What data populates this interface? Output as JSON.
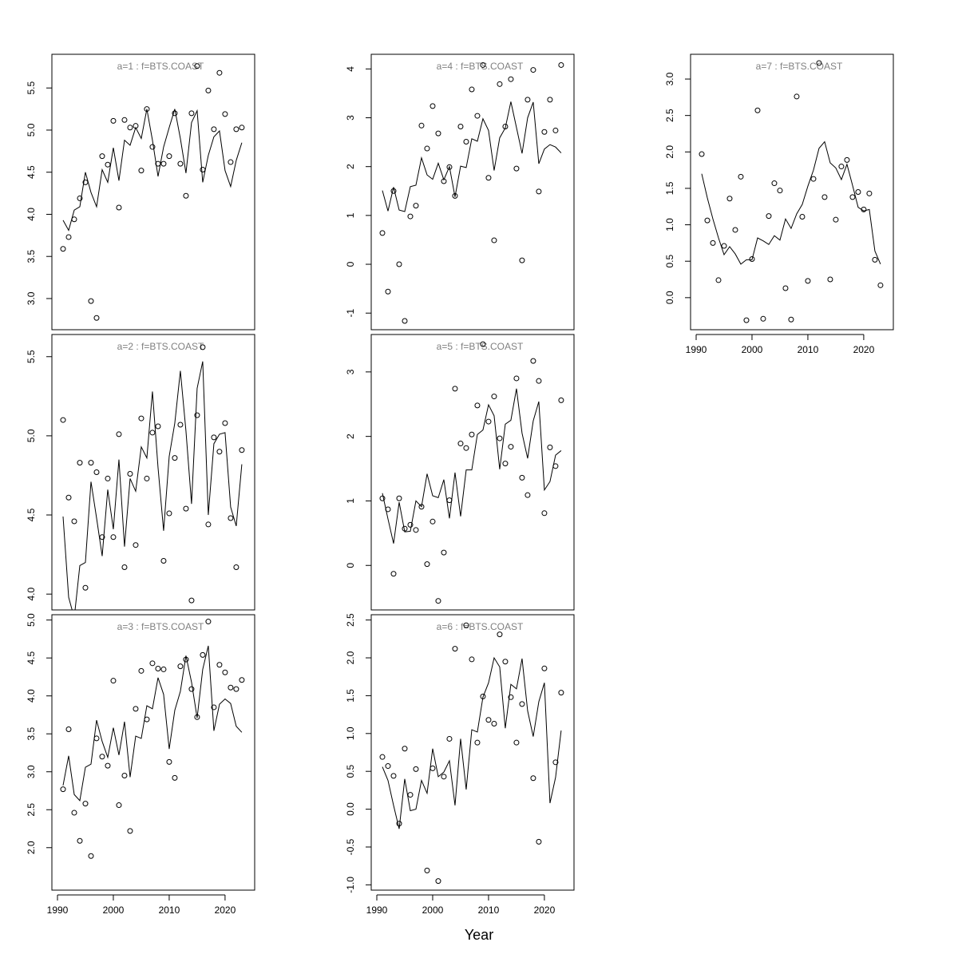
{
  "xlabel": "Year",
  "chart_data": [
    {
      "type": "line",
      "title": "a=1  :  f=BTS.COAST",
      "x": [
        1991,
        1992,
        1993,
        1994,
        1995,
        1996,
        1997,
        1998,
        1999,
        2000,
        2001,
        2002,
        2003,
        2004,
        2005,
        2006,
        2007,
        2008,
        2009,
        2010,
        2011,
        2012,
        2013,
        2014,
        2015,
        2016,
        2017,
        2018,
        2019,
        2020,
        2021,
        2022,
        2023
      ],
      "series": [
        {
          "style": "points",
          "color": "#000000",
          "values": [
            3.59,
            3.73,
            3.94,
            4.19,
            4.38,
            2.97,
            2.77,
            4.69,
            4.59,
            5.11,
            4.08,
            5.12,
            5.03,
            5.05,
            4.52,
            5.25,
            4.8,
            4.6,
            4.6,
            4.69,
            5.2,
            4.6,
            4.22,
            5.2,
            5.76,
            4.53,
            5.47,
            5.01,
            5.68,
            5.19,
            4.62,
            5.01,
            5.03
          ]
        },
        {
          "style": "line",
          "color": "#000000",
          "values": [
            3.93,
            3.81,
            4.05,
            4.09,
            4.5,
            4.26,
            4.09,
            4.53,
            4.38,
            4.79,
            4.4,
            4.88,
            4.82,
            5.03,
            4.9,
            5.25,
            4.88,
            4.45,
            4.8,
            5.03,
            5.25,
            4.9,
            4.49,
            5.09,
            5.23,
            4.38,
            4.7,
            4.92,
            4.99,
            4.52,
            4.33,
            4.64,
            4.85
          ]
        }
      ],
      "xlim": [
        1989,
        2025.3
      ],
      "ylim": [
        2.63,
        5.9
      ],
      "yticks": [
        {
          "value": 3,
          "label": "3.0"
        },
        3.5,
        {
          "value": 4,
          "label": "4.0"
        },
        4.5,
        {
          "value": 5,
          "label": "5.0"
        },
        5.5
      ]
    },
    {
      "type": "line",
      "title": "a=2  :  f=BTS.COAST",
      "x": [
        1991,
        1992,
        1993,
        1994,
        1995,
        1996,
        1997,
        1998,
        1999,
        2000,
        2001,
        2002,
        2003,
        2004,
        2005,
        2006,
        2007,
        2008,
        2009,
        2010,
        2011,
        2012,
        2013,
        2014,
        2015,
        2016,
        2017,
        2018,
        2019,
        2020,
        2021,
        2022,
        2023
      ],
      "series": [
        {
          "style": "points",
          "color": "#000000",
          "values": [
            5.1,
            4.61,
            4.46,
            4.83,
            4.04,
            4.83,
            4.77,
            4.36,
            4.73,
            4.36,
            5.01,
            4.17,
            4.76,
            4.31,
            5.11,
            4.73,
            5.02,
            5.06,
            4.21,
            4.51,
            4.86,
            5.07,
            4.54,
            3.96,
            5.13,
            5.56,
            4.44,
            4.99,
            4.9,
            5.08,
            4.48,
            4.17,
            4.91
          ]
        },
        {
          "style": "line",
          "color": "#000000",
          "values": [
            4.49,
            3.98,
            3.85,
            4.18,
            4.2,
            4.71,
            4.48,
            4.24,
            4.66,
            4.41,
            4.85,
            4.3,
            4.73,
            4.65,
            4.93,
            4.86,
            5.28,
            4.8,
            4.4,
            4.87,
            5.08,
            5.41,
            5.03,
            4.57,
            5.3,
            5.47,
            4.5,
            4.95,
            5.01,
            5.02,
            4.55,
            4.43,
            4.82
          ]
        }
      ],
      "xlim": [
        1989,
        2025.3
      ],
      "ylim": [
        3.9,
        5.64
      ],
      "yticks": [
        {
          "value": 4,
          "label": "4.0"
        },
        4.5,
        {
          "value": 5,
          "label": "5.0"
        },
        5.5
      ]
    },
    {
      "type": "line",
      "title": "a=3  :  f=BTS.COAST",
      "x": [
        1991,
        1992,
        1993,
        1994,
        1995,
        1996,
        1997,
        1998,
        1999,
        2000,
        2001,
        2002,
        2003,
        2004,
        2005,
        2006,
        2007,
        2008,
        2009,
        2010,
        2011,
        2012,
        2013,
        2014,
        2015,
        2016,
        2017,
        2018,
        2019,
        2020,
        2021,
        2022,
        2023
      ],
      "series": [
        {
          "style": "points",
          "color": "#000000",
          "values": [
            2.77,
            3.56,
            2.46,
            2.09,
            2.58,
            1.89,
            3.44,
            3.2,
            3.08,
            4.2,
            2.56,
            2.95,
            2.22,
            3.83,
            4.33,
            3.69,
            4.43,
            4.36,
            4.35,
            3.13,
            2.92,
            4.39,
            4.48,
            4.09,
            3.72,
            4.54,
            4.98,
            3.85,
            4.41,
            4.31,
            4.11,
            4.09,
            4.21
          ]
        },
        {
          "style": "line",
          "color": "#000000",
          "values": [
            2.82,
            3.21,
            2.7,
            2.62,
            3.06,
            3.1,
            3.68,
            3.4,
            3.19,
            3.58,
            3.22,
            3.66,
            2.93,
            3.47,
            3.44,
            3.87,
            3.83,
            4.24,
            4.02,
            3.3,
            3.81,
            4.06,
            4.53,
            4.18,
            3.71,
            4.35,
            4.66,
            3.54,
            3.89,
            3.96,
            3.9,
            3.6,
            3.52
          ]
        }
      ],
      "xlim": [
        1989,
        2025.3
      ],
      "ylim": [
        1.44,
        5.07
      ],
      "xticks": [
        1990,
        2000,
        2010,
        2020
      ],
      "yticks": [
        {
          "value": 2,
          "label": "2.0"
        },
        2.5,
        {
          "value": 3,
          "label": "3.0"
        },
        3.5,
        {
          "value": 4,
          "label": "4.0"
        },
        4.5,
        {
          "value": 5,
          "label": "5.0"
        }
      ]
    },
    {
      "type": "line",
      "title": "a=4  :  f=BTS.COAST",
      "x": [
        1991,
        1992,
        1993,
        1994,
        1995,
        1996,
        1997,
        1998,
        1999,
        2000,
        2001,
        2002,
        2003,
        2004,
        2005,
        2006,
        2007,
        2008,
        2009,
        2010,
        2011,
        2012,
        2013,
        2014,
        2015,
        2016,
        2017,
        2018,
        2019,
        2020,
        2021,
        2022,
        2023
      ],
      "series": [
        {
          "style": "points",
          "color": "#000000",
          "values": [
            0.64,
            -0.56,
            1.5,
            0.0,
            -1.16,
            0.98,
            1.2,
            2.84,
            2.37,
            3.24,
            2.68,
            1.7,
            1.99,
            1.4,
            2.82,
            2.51,
            3.58,
            3.04,
            4.08,
            1.77,
            0.49,
            3.69,
            2.82,
            3.79,
            1.96,
            0.08,
            3.37,
            3.98,
            1.49,
            2.71,
            3.37,
            2.74,
            4.08
          ]
        },
        {
          "style": "line",
          "color": "#000000",
          "values": [
            1.51,
            1.09,
            1.58,
            1.11,
            1.08,
            1.59,
            1.62,
            2.18,
            1.83,
            1.74,
            2.07,
            1.73,
            2.0,
            1.38,
            2.01,
            1.98,
            2.57,
            2.52,
            2.98,
            2.74,
            1.92,
            2.59,
            2.79,
            3.33,
            2.8,
            2.27,
            3.0,
            3.32,
            2.06,
            2.36,
            2.45,
            2.4,
            2.28
          ]
        }
      ],
      "xlim": [
        1989,
        2025.3
      ],
      "ylim": [
        -1.34,
        4.3
      ],
      "yticks": [
        -1,
        0,
        1,
        2,
        3,
        4
      ]
    },
    {
      "type": "line",
      "title": "a=5  :  f=BTS.COAST",
      "x": [
        1991,
        1992,
        1993,
        1994,
        1995,
        1996,
        1997,
        1998,
        1999,
        2000,
        2001,
        2002,
        2003,
        2004,
        2005,
        2006,
        2007,
        2008,
        2009,
        2010,
        2011,
        2012,
        2013,
        2014,
        2015,
        2016,
        2017,
        2018,
        2019,
        2020,
        2021,
        2022,
        2023
      ],
      "series": [
        {
          "style": "points",
          "color": "#000000",
          "values": [
            1.04,
            0.87,
            -0.13,
            1.04,
            0.57,
            0.63,
            0.55,
            0.91,
            0.02,
            0.68,
            -0.55,
            0.2,
            1.01,
            2.74,
            1.89,
            1.82,
            2.03,
            2.48,
            3.43,
            2.23,
            2.62,
            1.97,
            1.58,
            1.84,
            2.9,
            1.36,
            1.09,
            3.17,
            2.86,
            0.81,
            1.83,
            1.54,
            2.56
          ]
        },
        {
          "style": "line",
          "color": "#000000",
          "values": [
            1.12,
            0.72,
            0.34,
            0.98,
            0.52,
            0.53,
            1.0,
            0.91,
            1.42,
            1.08,
            1.05,
            1.33,
            0.73,
            1.44,
            0.76,
            1.48,
            1.48,
            2.03,
            2.1,
            2.49,
            2.32,
            1.49,
            2.19,
            2.25,
            2.74,
            2.05,
            1.66,
            2.24,
            2.54,
            1.17,
            1.3,
            1.71,
            1.78
          ]
        }
      ],
      "xlim": [
        1989,
        2025.3
      ],
      "ylim": [
        -0.69,
        3.58
      ],
      "yticks": [
        0,
        1,
        2,
        3
      ]
    },
    {
      "type": "line",
      "title": "a=6  :  f=BTS.COAST",
      "x": [
        1991,
        1992,
        1993,
        1994,
        1995,
        1996,
        1997,
        1998,
        1999,
        2000,
        2001,
        2002,
        2003,
        2004,
        2005,
        2006,
        2007,
        2008,
        2009,
        2010,
        2011,
        2012,
        2013,
        2014,
        2015,
        2016,
        2017,
        2018,
        2019,
        2020,
        2021,
        2022,
        2023
      ],
      "series": [
        {
          "style": "points",
          "color": "#000000",
          "values": [
            0.69,
            0.57,
            0.44,
            -0.19,
            0.8,
            0.19,
            0.53,
            null,
            -0.81,
            0.54,
            -0.95,
            0.43,
            0.93,
            2.12,
            null,
            2.43,
            1.98,
            0.88,
            1.49,
            1.18,
            1.13,
            2.31,
            1.95,
            1.48,
            0.88,
            1.39,
            null,
            0.41,
            -0.43,
            1.86,
            null,
            0.62,
            1.54
          ]
        },
        {
          "style": "line",
          "color": "#000000",
          "values": [
            0.56,
            0.38,
            0.05,
            -0.26,
            0.4,
            -0.02,
            0.0,
            0.38,
            0.21,
            0.8,
            0.43,
            0.49,
            0.64,
            0.05,
            0.93,
            0.26,
            1.05,
            1.02,
            1.48,
            1.67,
            2.0,
            1.88,
            1.07,
            1.65,
            1.59,
            1.99,
            1.3,
            0.96,
            1.42,
            1.67,
            0.08,
            0.42,
            1.04
          ]
        }
      ],
      "xlim": [
        1989,
        2025.3
      ],
      "ylim": [
        -1.07,
        2.57
      ],
      "xticks": [
        1990,
        2000,
        2010,
        2020
      ],
      "yticks": [
        {
          "value": -1,
          "label": "-1.0"
        },
        -0.5,
        {
          "value": 0,
          "label": "0.0"
        },
        0.5,
        {
          "value": 1,
          "label": "1.0"
        },
        1.5,
        {
          "value": 2,
          "label": "2.0"
        },
        2.5
      ]
    },
    {
      "type": "line",
      "title": "a=7  :  f=BTS.COAST",
      "x": [
        1991,
        1992,
        1993,
        1994,
        1995,
        1996,
        1997,
        1998,
        1999,
        2000,
        2001,
        2002,
        2003,
        2004,
        2005,
        2006,
        2007,
        2008,
        2009,
        2010,
        2011,
        2012,
        2013,
        2014,
        2015,
        2016,
        2017,
        2018,
        2019,
        2020,
        2021,
        2022,
        2023
      ],
      "series": [
        {
          "style": "points",
          "color": "#000000",
          "values": [
            1.97,
            1.06,
            0.75,
            0.24,
            0.71,
            1.36,
            0.93,
            1.66,
            -0.31,
            0.53,
            2.57,
            -0.29,
            1.12,
            1.57,
            1.47,
            0.13,
            -0.3,
            2.76,
            1.11,
            0.23,
            1.63,
            3.22,
            1.38,
            0.25,
            1.07,
            1.8,
            1.89,
            1.38,
            1.45,
            1.21,
            1.43,
            0.52,
            0.17
          ]
        },
        {
          "style": "line",
          "color": "#000000",
          "values": [
            1.7,
            1.37,
            1.08,
            0.82,
            0.59,
            0.7,
            0.6,
            0.46,
            0.52,
            0.52,
            0.82,
            0.78,
            0.73,
            0.85,
            0.79,
            1.08,
            0.95,
            1.15,
            1.28,
            1.53,
            1.75,
            2.05,
            2.14,
            1.85,
            1.78,
            1.62,
            1.83,
            1.54,
            1.24,
            1.19,
            1.21,
            0.64,
            0.46
          ]
        }
      ],
      "xlim": [
        1989,
        2025.3
      ],
      "ylim": [
        -0.44,
        3.34
      ],
      "xticks": [
        1990,
        2000,
        2010,
        2020
      ],
      "yticks": [
        {
          "value": 0,
          "label": "0.0"
        },
        0.5,
        {
          "value": 1,
          "label": "1.0"
        },
        1.5,
        {
          "value": 2,
          "label": "2.0"
        },
        2.5,
        {
          "value": 3,
          "label": "3.0"
        }
      ]
    }
  ]
}
